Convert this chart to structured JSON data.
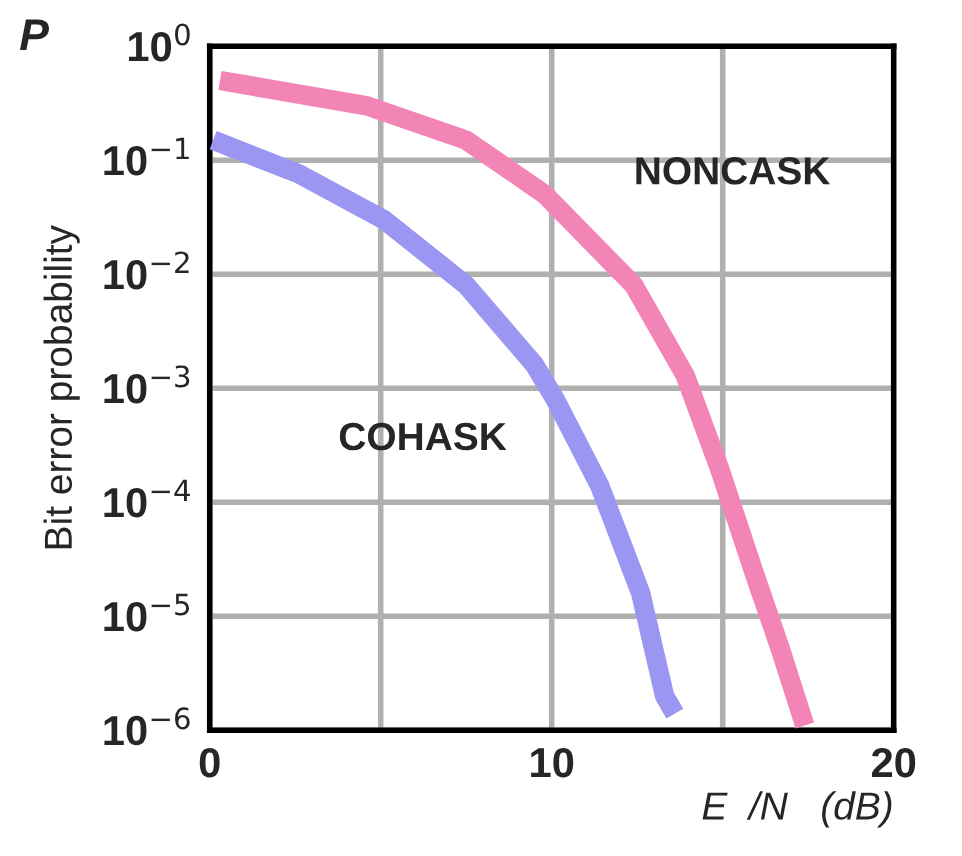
{
  "chart_data": {
    "type": "line",
    "ylabel": "Bit error probability",
    "xlabel": "E  /N   (dB)",
    "log": "y",
    "xlim": [
      0,
      20
    ],
    "ylim": [
      1e-06,
      1
    ],
    "xticks": [
      0,
      {
        "value": 5,
        "label": null
      },
      10,
      {
        "value": 15,
        "label": null
      },
      20
    ],
    "yticks": [
      {
        "value": 1,
        "label": "10$^{0}$"
      },
      {
        "value": 0.1,
        "label": "10$^{−1}$"
      },
      {
        "value": 0.01,
        "label": "10$^{−2}$"
      },
      {
        "value": 0.001,
        "label": "10$^{−3}$"
      },
      {
        "value": 0.0001,
        "label": "10$^{−4}$"
      },
      {
        "value": 1e-05,
        "label": "10$^{−5}$"
      },
      {
        "value": 1e-06,
        "label": "10$^{−6}$"
      }
    ],
    "grid": true,
    "legend": false,
    "marker": "none",
    "line_style": "solid",
    "series": [
      {
        "name": "NONCASK",
        "color": "#f284b6",
        "x": [
          0.3,
          4.6,
          7.5,
          9.8,
          12.4,
          13.9,
          14.9,
          15.9,
          16.7,
          17.4
        ],
        "values": [
          0.5,
          0.3,
          0.15,
          0.05,
          0.008,
          0.0013,
          0.0002,
          2.5e-05,
          5e-06,
          1.1e-06
        ]
      },
      {
        "name": "COHASK",
        "color": "#9a96f2",
        "x": [
          0.1,
          2.6,
          5.1,
          7.5,
          9.5,
          10.1,
          11.4,
          12.6,
          13.3,
          13.6
        ],
        "values": [
          0.15,
          0.076,
          0.03,
          0.008,
          0.0016,
          0.0008,
          0.00014,
          1.6e-05,
          2e-06,
          1.4e-06
        ]
      }
    ],
    "annotations": [
      "P"
    ]
  }
}
